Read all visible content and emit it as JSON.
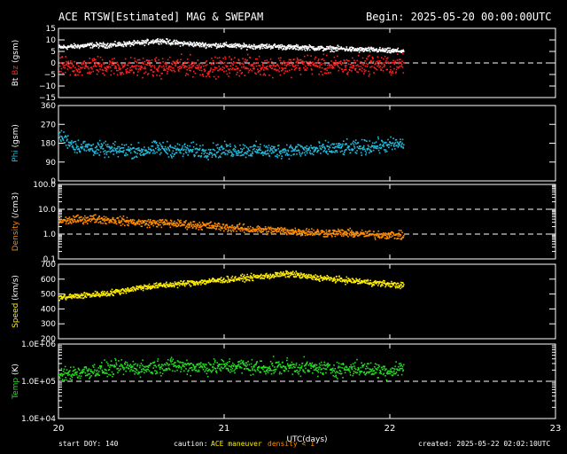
{
  "header": {
    "title": "ACE RTSW[Estimated] MAG & SWEPAM",
    "begin": "Begin: 2025-05-20 00:00:00UTC"
  },
  "footer": {
    "start_doy": "start DOY: 140",
    "caution_label": "caution:",
    "maneuver": "ACE maneuver",
    "density_note": "density < 1",
    "created": "created: 2025-05-22 02:02:10UTC"
  },
  "colors": {
    "bt": "#ffffff",
    "bz": "#ff2020",
    "phi": "#22bbdd",
    "density": "#ff8c00",
    "speed": "#ffee00",
    "temp": "#22dd22",
    "frame": "#ffffff",
    "background": "#000000"
  },
  "chart_data": [
    {
      "type": "scatter",
      "panel": "mag",
      "ylabel_parts": [
        "Bt",
        "Bz",
        "(gsm)"
      ],
      "ylim": [
        -15,
        15
      ],
      "yticks": [
        15,
        10,
        5,
        0,
        -5,
        -10,
        -15
      ],
      "ytick_labels": [
        "15",
        "10",
        "5",
        "0",
        "−5",
        "−10",
        "−15"
      ],
      "reference_line": 0,
      "series": [
        {
          "name": "Bt",
          "color": "#ffffff",
          "x": [
            20.0,
            20.1,
            20.2,
            20.3,
            20.4,
            20.5,
            20.6,
            20.7,
            20.8,
            20.9,
            21.0,
            21.1,
            21.2,
            21.3,
            21.4,
            21.5,
            21.6,
            21.7,
            21.8,
            21.9,
            22.0,
            22.08
          ],
          "values": [
            7,
            7.5,
            8,
            8,
            8.5,
            9,
            10,
            9,
            8.5,
            8,
            8,
            7.5,
            7.5,
            7.5,
            7,
            7,
            6.5,
            6.5,
            6,
            6,
            5.5,
            5.5
          ],
          "spread": 0.8
        },
        {
          "name": "Bz",
          "color": "#ff2020",
          "x": [
            20.0,
            20.1,
            20.2,
            20.3,
            20.4,
            20.5,
            20.6,
            20.7,
            20.8,
            20.9,
            21.0,
            21.1,
            21.2,
            21.3,
            21.4,
            21.5,
            21.6,
            21.7,
            21.8,
            21.9,
            22.0,
            22.08
          ],
          "values": [
            -1,
            -2,
            -1,
            -1,
            -2,
            -1,
            -2,
            -1,
            -1,
            -2,
            -1,
            -1,
            -1,
            -1,
            -1,
            0,
            -1,
            -1,
            -1,
            0,
            -1,
            0
          ],
          "spread": 3
        }
      ]
    },
    {
      "type": "scatter",
      "panel": "phi",
      "ylabel_parts": [
        "Phi",
        "(gsm)"
      ],
      "ylim": [
        0,
        360
      ],
      "yticks": [
        360,
        270,
        180,
        90,
        0
      ],
      "ytick_labels": [
        "360",
        "270",
        "180",
        "90",
        "0"
      ],
      "series": [
        {
          "name": "Phi",
          "color": "#22bbdd",
          "x": [
            20.0,
            20.1,
            20.2,
            20.3,
            20.4,
            20.5,
            20.6,
            20.7,
            20.8,
            20.9,
            21.0,
            21.1,
            21.2,
            21.3,
            21.4,
            21.5,
            21.6,
            21.7,
            21.8,
            21.9,
            22.0,
            22.08
          ],
          "values": [
            220,
            170,
            160,
            150,
            150,
            145,
            160,
            150,
            150,
            145,
            150,
            150,
            150,
            145,
            150,
            150,
            155,
            160,
            160,
            170,
            175,
            180
          ],
          "spread": 25
        }
      ]
    },
    {
      "type": "scatter",
      "panel": "density",
      "ylabel_parts": [
        "Density",
        "(/cm3)"
      ],
      "yscale": "log",
      "ylim": [
        0.1,
        100
      ],
      "yticks": [
        100,
        10,
        1,
        0.1
      ],
      "ytick_labels": [
        "100.0",
        "10.0",
        "1.0",
        "0.1"
      ],
      "reference_lines": [
        10,
        1
      ],
      "series": [
        {
          "name": "Density",
          "color": "#ff8c00",
          "x": [
            20.0,
            20.1,
            20.2,
            20.3,
            20.4,
            20.5,
            20.6,
            20.7,
            20.8,
            20.9,
            21.0,
            21.1,
            21.2,
            21.3,
            21.4,
            21.5,
            21.6,
            21.7,
            21.8,
            21.9,
            22.0,
            22.08
          ],
          "values": [
            3.5,
            4,
            4.5,
            4,
            3.5,
            3,
            3,
            2.8,
            2.5,
            2.3,
            2,
            1.8,
            1.6,
            1.5,
            1.4,
            1.3,
            1.2,
            1.2,
            1.1,
            1.0,
            1.0,
            0.9
          ],
          "spread_log": 0.12
        }
      ]
    },
    {
      "type": "scatter",
      "panel": "speed",
      "ylabel_parts": [
        "Speed",
        "(km/s)"
      ],
      "ylim": [
        200,
        700
      ],
      "yticks": [
        700,
        600,
        500,
        400,
        300,
        200
      ],
      "ytick_labels": [
        "700",
        "600",
        "500",
        "400",
        "300",
        "200"
      ],
      "series": [
        {
          "name": "Speed",
          "color": "#ffee00",
          "x": [
            20.0,
            20.1,
            20.2,
            20.3,
            20.4,
            20.5,
            20.6,
            20.7,
            20.8,
            20.9,
            21.0,
            21.1,
            21.2,
            21.3,
            21.4,
            21.5,
            21.6,
            21.7,
            21.8,
            21.9,
            22.0,
            22.08
          ],
          "values": [
            480,
            490,
            500,
            510,
            530,
            550,
            560,
            570,
            580,
            590,
            600,
            610,
            620,
            630,
            640,
            620,
            610,
            600,
            590,
            580,
            570,
            560
          ],
          "spread": 15
        }
      ]
    },
    {
      "type": "scatter",
      "panel": "temp",
      "ylabel_parts": [
        "Temp",
        "(K)"
      ],
      "yscale": "log",
      "ylim": [
        10000,
        1000000
      ],
      "yticks": [
        1000000,
        100000,
        10000
      ],
      "ytick_labels": [
        "1.0E+06",
        "1.0E+05",
        "1.0E+04"
      ],
      "reference_line": 100000,
      "series": [
        {
          "name": "Temp",
          "color": "#22dd22",
          "x": [
            20.0,
            20.1,
            20.2,
            20.3,
            20.4,
            20.5,
            20.6,
            20.7,
            20.8,
            20.9,
            21.0,
            21.1,
            21.2,
            21.3,
            21.4,
            21.5,
            21.6,
            21.7,
            21.8,
            21.9,
            22.0,
            22.08
          ],
          "values": [
            150000,
            180000,
            200000,
            220000,
            250000,
            230000,
            260000,
            280000,
            260000,
            250000,
            260000,
            270000,
            240000,
            250000,
            260000,
            240000,
            230000,
            220000,
            230000,
            210000,
            200000,
            240000
          ],
          "spread_log": 0.15
        }
      ]
    }
  ],
  "xaxis": {
    "label": "UTC(days)",
    "range": [
      20,
      23
    ],
    "ticks": [
      20,
      21,
      22,
      23
    ],
    "tick_labels": [
      "20",
      "21",
      "22",
      "23"
    ]
  }
}
